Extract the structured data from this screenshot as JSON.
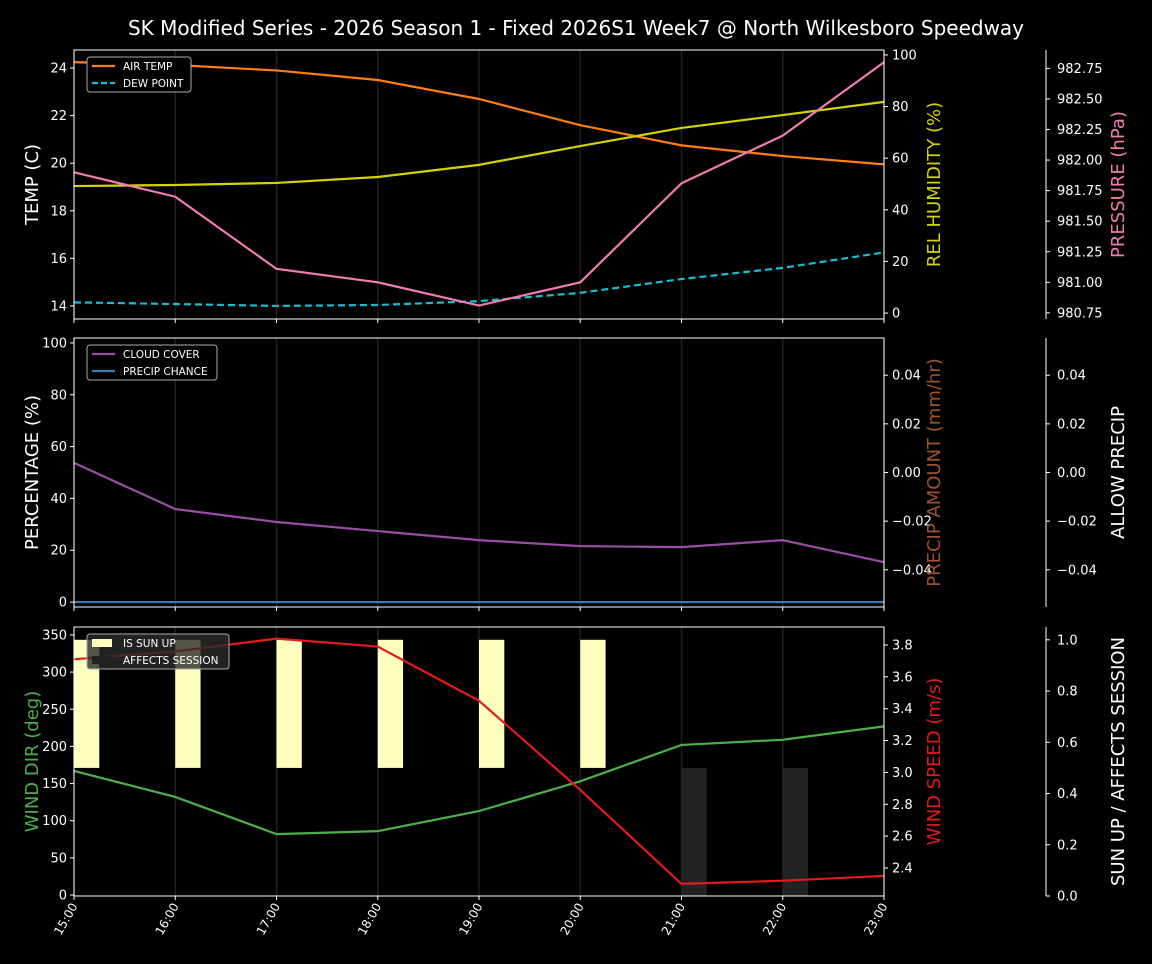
{
  "title": "SK Modified Series - 2026 Season 1 - Fixed 2026S1 Week7 @ North Wilkesboro Speedway",
  "colors": {
    "background": "#000000",
    "air_temp": "#ff7f0e",
    "dew_point": "#17becf",
    "humidity": "#d4d400",
    "pressure": "#f17cb0",
    "cloud": "#984ea3",
    "precip_chance": "#377eb8",
    "precip_amount": "#a0522d",
    "wind_dir": "#4daf4a",
    "wind_speed": "#e41a1c",
    "sun_up": "#ffffc0",
    "affects_session": "#222222"
  },
  "chart_data": [
    {
      "type": "line",
      "x": [
        "15:00",
        "16:00",
        "17:00",
        "18:00",
        "19:00",
        "20:00",
        "21:00",
        "22:00",
        "23:00"
      ],
      "left_axis": {
        "label": "TEMP (C)",
        "ylim": [
          13.45,
          24.76
        ],
        "ticks": [
          "14",
          "16",
          "18",
          "20",
          "22",
          "24"
        ]
      },
      "right_axis": {
        "label": "REL HUMIDITY (%)",
        "ylim": [
          -2.3,
          101.9
        ],
        "ticks": [
          "0",
          "20",
          "40",
          "60",
          "80",
          "100"
        ]
      },
      "right_axis_2": {
        "label": "PRESSURE (hPa)",
        "ylim": [
          980.7,
          982.9
        ],
        "ticks": [
          "980.75",
          "981.00",
          "981.25",
          "981.50",
          "981.75",
          "982.00",
          "982.25",
          "982.50",
          "982.75"
        ]
      },
      "legend": "top-left",
      "grid": "x",
      "series": [
        {
          "name": "AIR TEMP",
          "axis": "left",
          "style": "solid",
          "values": [
            24.25,
            24.13,
            23.9,
            23.5,
            22.7,
            21.6,
            20.75,
            20.3,
            19.95
          ]
        },
        {
          "name": "DEW POINT",
          "axis": "left",
          "style": "dashed",
          "values": [
            14.15,
            14.08,
            14.0,
            14.04,
            14.2,
            14.55,
            15.13,
            15.6,
            16.25
          ]
        },
        {
          "axis": "right",
          "style": "solid",
          "values": [
            49.2,
            49.6,
            50.4,
            52.7,
            57.4,
            64.7,
            71.7,
            76.7,
            81.8
          ]
        },
        {
          "axis": "right2",
          "style": "solid",
          "values": [
            981.9,
            981.7,
            981.11,
            981.0,
            980.81,
            981.0,
            981.81,
            982.2,
            982.8
          ]
        }
      ]
    },
    {
      "type": "line",
      "x": [
        "15:00",
        "16:00",
        "17:00",
        "18:00",
        "19:00",
        "20:00",
        "21:00",
        "22:00",
        "23:00"
      ],
      "left_axis": {
        "label": "PERCENTAGE (%)",
        "ylim": [
          -1.9,
          101.9
        ],
        "ticks": [
          "0",
          "20",
          "40",
          "60",
          "80",
          "100"
        ]
      },
      "right_axis": {
        "label": "PRECIP AMOUNT (mm/hr)",
        "ylim": [
          -0.0553,
          0.0553
        ],
        "ticks": [
          "−0.04",
          "−0.02",
          "0.00",
          "0.02",
          "0.04"
        ]
      },
      "right_axis_2": {
        "label": "ALLOW PRECIP",
        "ylim": [
          -0.0553,
          0.0553
        ],
        "ticks": [
          "−0.04",
          "−0.02",
          "0.00",
          "0.02",
          "0.04"
        ]
      },
      "legend": "top-left",
      "grid": "x",
      "series": [
        {
          "name": "CLOUD COVER",
          "axis": "left",
          "style": "solid",
          "values": [
            53.7,
            35.9,
            30.9,
            27.4,
            23.9,
            21.6,
            21.2,
            23.9,
            15.4
          ]
        },
        {
          "name": "PRECIP CHANCE",
          "axis": "left",
          "style": "solid",
          "values": [
            0,
            0,
            0,
            0,
            0,
            0,
            0,
            0,
            0
          ]
        }
      ]
    },
    {
      "type": "line",
      "x": [
        "15:00",
        "16:00",
        "17:00",
        "18:00",
        "19:00",
        "20:00",
        "21:00",
        "22:00",
        "23:00"
      ],
      "left_axis": {
        "label": "WIND DIR (deg)",
        "ylim": [
          -1.3,
          360.7
        ],
        "ticks": [
          "0",
          "50",
          "100",
          "150",
          "200",
          "250",
          "300",
          "350"
        ]
      },
      "right_axis": {
        "label": "WIND SPEED (m/s)",
        "ylim": [
          2.224,
          3.913
        ],
        "ticks": [
          "2.4",
          "2.6",
          "2.8",
          "3.0",
          "3.2",
          "3.4",
          "3.6",
          "3.8"
        ]
      },
      "right_axis_2": {
        "label": "SUN UP / AFFECTS SESSION",
        "ylim": [
          0,
          1.05
        ],
        "ticks": [
          "0.0",
          "0.2",
          "0.4",
          "0.6",
          "0.8",
          "1.0"
        ]
      },
      "legend": "top-left",
      "grid": "x",
      "series": [
        {
          "axis": "left",
          "style": "solid",
          "values": [
            167,
            132,
            82,
            86,
            113,
            153,
            202,
            209,
            227
          ]
        },
        {
          "axis": "right",
          "style": "solid",
          "values": [
            3.71,
            3.76,
            3.84,
            3.79,
            3.45,
            2.89,
            2.3,
            2.32,
            2.35
          ]
        }
      ],
      "bars": [
        {
          "name": "IS SUN UP",
          "values": [
            1,
            1,
            1,
            1,
            1,
            1,
            0,
            0,
            0
          ]
        },
        {
          "name": "AFFECTS SESSION",
          "values": [
            0,
            0,
            0,
            0,
            0,
            0,
            1,
            1,
            0
          ]
        }
      ]
    }
  ]
}
